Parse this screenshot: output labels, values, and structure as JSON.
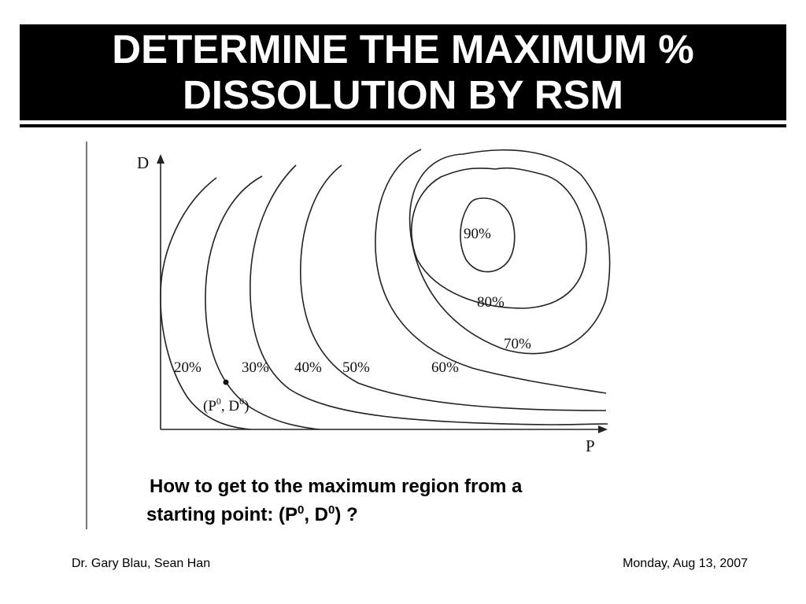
{
  "slide": {
    "title_line1": "DETERMINE THE MAXIMUM %",
    "title_line2": "DISSOLUTION BY RSM"
  },
  "diagram": {
    "y_axis_label": "D",
    "x_axis_label": "P",
    "contour_labels": [
      "20%",
      "30%",
      "40%",
      "50%",
      "60%",
      "70%",
      "80%",
      "90%"
    ],
    "start_point_label": "(P0, D0)",
    "start_point": {
      "p": "P",
      "p_sup": "0",
      "d": "D",
      "d_sup": "0"
    }
  },
  "question": {
    "line1": "How to get to the maximum region from a",
    "line2_prefix": "starting point: (P",
    "sup1": "0",
    "mid": ", D",
    "sup2": "0",
    "suffix": ")  ?"
  },
  "footer": {
    "left": "Dr. Gary Blau, Sean Han",
    "right": "Monday, Aug 13, 2007"
  }
}
